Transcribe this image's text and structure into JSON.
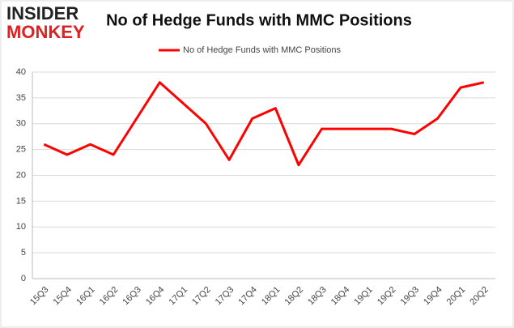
{
  "logo": {
    "line1": "INSIDER",
    "line2": "MONKEY"
  },
  "chart_data": {
    "type": "line",
    "title": "No of Hedge Funds with MMC Positions",
    "categories": [
      "15Q3",
      "15Q4",
      "16Q1",
      "16Q2",
      "16Q3",
      "16Q4",
      "17Q1",
      "17Q2",
      "17Q3",
      "17Q4",
      "18Q1",
      "18Q2",
      "18Q3",
      "18Q4",
      "19Q1",
      "19Q2",
      "19Q3",
      "19Q4",
      "20Q1",
      "20Q2"
    ],
    "series": [
      {
        "name": "No of Hedge Funds with MMC Positions",
        "color": "#ff0000",
        "values": [
          26,
          24,
          26,
          24,
          31,
          38,
          34,
          30,
          23,
          31,
          33,
          22,
          29,
          29,
          29,
          29,
          28,
          31,
          37,
          38
        ]
      }
    ],
    "ylim": [
      0,
      40
    ],
    "yticks": [
      0,
      5,
      10,
      15,
      20,
      25,
      30,
      35,
      40
    ],
    "grid": true,
    "legend": "top"
  }
}
